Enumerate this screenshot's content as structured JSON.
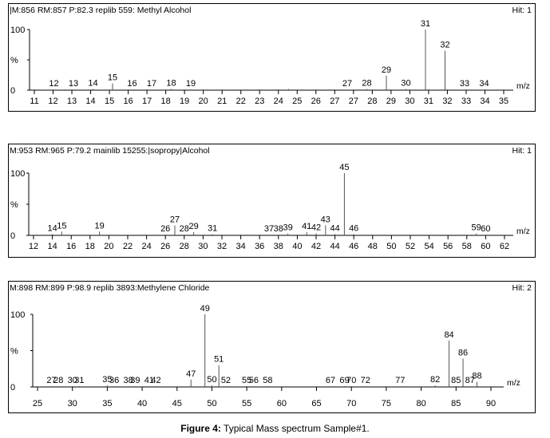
{
  "caption": {
    "label": "Figure 4:",
    "text": " Typical Mass spectrum Sample#1."
  },
  "chart_data": [
    {
      "type": "bar",
      "header": "|M:856 RM:857 P:82.3 replib 559: Methyl Alcohol",
      "hit": "Hit: 1",
      "xlabel": "m/z",
      "yticks": [
        "100",
        "%",
        "0"
      ],
      "ylim": [
        0,
        100
      ],
      "xlim": [
        11,
        35
      ],
      "xticks": [
        "11",
        "12",
        "13",
        "14",
        "15",
        "16",
        "17",
        "18",
        "19",
        "20",
        "21",
        "22",
        "23",
        "24",
        "25",
        "26",
        "27",
        "27",
        "28",
        "29",
        "30",
        "31",
        "32",
        "33",
        "34",
        "35"
      ],
      "peaks": [
        {
          "mz": 12,
          "label": "12",
          "intensity": 1
        },
        {
          "mz": 13,
          "label": "13",
          "intensity": 1
        },
        {
          "mz": 14,
          "label": "14",
          "intensity": 2
        },
        {
          "mz": 15,
          "label": "15",
          "intensity": 11
        },
        {
          "mz": 16,
          "label": "16",
          "intensity": 1
        },
        {
          "mz": 17,
          "label": "17",
          "intensity": 1
        },
        {
          "mz": 18,
          "label": "18",
          "intensity": 2
        },
        {
          "mz": 19,
          "label": "19",
          "intensity": 1
        },
        {
          "mz": 24,
          "label": "",
          "intensity": 2
        },
        {
          "mz": 27,
          "label": "27",
          "intensity": 1
        },
        {
          "mz": 28,
          "label": "28",
          "intensity": 2
        },
        {
          "mz": 29,
          "label": "29",
          "intensity": 24
        },
        {
          "mz": 30,
          "label": "30",
          "intensity": 2
        },
        {
          "mz": 31,
          "label": "31",
          "intensity": 100
        },
        {
          "mz": 32,
          "label": "32",
          "intensity": 65
        },
        {
          "mz": 33,
          "label": "33",
          "intensity": 1
        },
        {
          "mz": 34,
          "label": "34",
          "intensity": 1
        }
      ]
    },
    {
      "type": "bar",
      "header": "M:953 RM:965 P:79.2 mainlib 15255:|sopropy|Alcohol",
      "hit": "Hit: 1",
      "xlabel": "m/z",
      "yticks": [
        "100",
        "%",
        "0"
      ],
      "ylim": [
        0,
        100
      ],
      "xlim": [
        12,
        62
      ],
      "xticks": [
        "12",
        "14",
        "16",
        "18",
        "20",
        "22",
        "24",
        "26",
        "28",
        "30",
        "32",
        "34",
        "36",
        "38",
        "40",
        "42",
        "44",
        "46",
        "48",
        "50",
        "52",
        "54",
        "56",
        "58",
        "60",
        "62"
      ],
      "peaks": [
        {
          "mz": 14,
          "label": "14",
          "intensity": 2
        },
        {
          "mz": 15,
          "label": "15",
          "intensity": 6
        },
        {
          "mz": 19,
          "label": "19",
          "intensity": 6
        },
        {
          "mz": 26,
          "label": "26",
          "intensity": 1
        },
        {
          "mz": 27,
          "label": "27",
          "intensity": 16
        },
        {
          "mz": 28,
          "label": "28",
          "intensity": 1
        },
        {
          "mz": 29,
          "label": "29",
          "intensity": 5
        },
        {
          "mz": 31,
          "label": "31",
          "intensity": 2
        },
        {
          "mz": 37,
          "label": "37",
          "intensity": 1
        },
        {
          "mz": 38,
          "label": "38",
          "intensity": 1
        },
        {
          "mz": 39,
          "label": "39",
          "intensity": 3
        },
        {
          "mz": 41,
          "label": "41",
          "intensity": 5
        },
        {
          "mz": 42,
          "label": "42",
          "intensity": 3
        },
        {
          "mz": 43,
          "label": "43",
          "intensity": 16
        },
        {
          "mz": 44,
          "label": "44",
          "intensity": 2
        },
        {
          "mz": 45,
          "label": "45",
          "intensity": 100
        },
        {
          "mz": 46,
          "label": "46",
          "intensity": 2
        },
        {
          "mz": 59,
          "label": "59",
          "intensity": 3
        },
        {
          "mz": 60,
          "label": "60",
          "intensity": 1
        }
      ]
    },
    {
      "type": "bar",
      "header": "M:898 RM:899 P:98.9 replib 3893:Methylene Chloride",
      "hit": "Hit: 2",
      "xlabel": "m/z",
      "yticks": [
        "100",
        "%",
        "0"
      ],
      "ylim": [
        0,
        100
      ],
      "xlim": [
        25,
        90
      ],
      "xticks": [
        "25",
        "30",
        "35",
        "40",
        "45",
        "50",
        "55",
        "60",
        "65",
        "70",
        "75",
        "80",
        "85",
        "90"
      ],
      "peaks": [
        {
          "mz": 27,
          "label": "27",
          "intensity": 1
        },
        {
          "mz": 28,
          "label": "28",
          "intensity": 1
        },
        {
          "mz": 30,
          "label": "30",
          "intensity": 1
        },
        {
          "mz": 31,
          "label": "31",
          "intensity": 1
        },
        {
          "mz": 35,
          "label": "35",
          "intensity": 2
        },
        {
          "mz": 36,
          "label": "36",
          "intensity": 1
        },
        {
          "mz": 38,
          "label": "38",
          "intensity": 1
        },
        {
          "mz": 39,
          "label": "39",
          "intensity": 1
        },
        {
          "mz": 41,
          "label": "41",
          "intensity": 1
        },
        {
          "mz": 42,
          "label": "42",
          "intensity": 1
        },
        {
          "mz": 47,
          "label": "47",
          "intensity": 10
        },
        {
          "mz": 49,
          "label": "49",
          "intensity": 100
        },
        {
          "mz": 50,
          "label": "50",
          "intensity": 2
        },
        {
          "mz": 51,
          "label": "51",
          "intensity": 30
        },
        {
          "mz": 52,
          "label": "52",
          "intensity": 1
        },
        {
          "mz": 55,
          "label": "55",
          "intensity": 1
        },
        {
          "mz": 56,
          "label": "56",
          "intensity": 1
        },
        {
          "mz": 58,
          "label": "58",
          "intensity": 1
        },
        {
          "mz": 67,
          "label": "67",
          "intensity": 1
        },
        {
          "mz": 69,
          "label": "69",
          "intensity": 1
        },
        {
          "mz": 70,
          "label": "70",
          "intensity": 1
        },
        {
          "mz": 72,
          "label": "72",
          "intensity": 1
        },
        {
          "mz": 77,
          "label": "77",
          "intensity": 1
        },
        {
          "mz": 82,
          "label": "82",
          "intensity": 2
        },
        {
          "mz": 84,
          "label": "84",
          "intensity": 64
        },
        {
          "mz": 85,
          "label": "85",
          "intensity": 1
        },
        {
          "mz": 86,
          "label": "86",
          "intensity": 39
        },
        {
          "mz": 87,
          "label": "87",
          "intensity": 1
        },
        {
          "mz": 88,
          "label": "88",
          "intensity": 7
        }
      ]
    }
  ]
}
